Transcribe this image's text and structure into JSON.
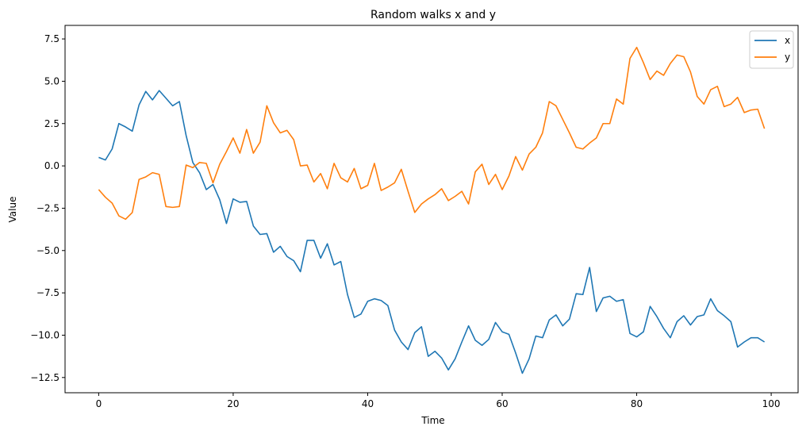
{
  "chart_data": {
    "type": "line",
    "title": "Random walks x and y",
    "xlabel": "Time",
    "ylabel": "Value",
    "xlim": [
      -5,
      104
    ],
    "ylim": [
      -13.4,
      8.3
    ],
    "xticks": [
      0,
      20,
      40,
      60,
      80,
      100
    ],
    "yticks": [
      -12.5,
      -10.0,
      -7.5,
      -5.0,
      -2.5,
      0.0,
      2.5,
      5.0,
      7.5
    ],
    "xtick_labels": [
      "0",
      "20",
      "40",
      "60",
      "80",
      "100"
    ],
    "ytick_labels": [
      "−12.5",
      "−10.0",
      "−7.5",
      "−5.0",
      "−2.5",
      "0.0",
      "2.5",
      "5.0",
      "7.5"
    ],
    "grid": false,
    "legend_position": "top-right",
    "series": [
      {
        "name": "x",
        "color": "#1f77b4",
        "values": [
          0.5,
          0.35,
          1.0,
          2.5,
          2.3,
          2.05,
          3.6,
          4.4,
          3.9,
          4.45,
          4.0,
          3.55,
          3.8,
          1.8,
          0.2,
          -0.4,
          -1.4,
          -1.1,
          -2.0,
          -3.4,
          -1.95,
          -2.15,
          -2.1,
          -3.55,
          -4.05,
          -4.0,
          -5.1,
          -4.75,
          -5.35,
          -5.6,
          -6.25,
          -4.4,
          -4.4,
          -5.45,
          -4.6,
          -5.85,
          -5.65,
          -7.6,
          -8.95,
          -8.75,
          -8.0,
          -7.85,
          -7.95,
          -8.25,
          -9.7,
          -10.4,
          -10.85,
          -9.85,
          -9.5,
          -11.25,
          -10.95,
          -11.35,
          -12.05,
          -11.4,
          -10.4,
          -9.45,
          -10.3,
          -10.6,
          -10.25,
          -9.25,
          -9.8,
          -9.95,
          -11.05,
          -12.25,
          -11.4,
          -10.05,
          -10.15,
          -9.1,
          -8.8,
          -9.45,
          -9.05,
          -7.55,
          -7.6,
          -6.0,
          -8.6,
          -7.8,
          -7.7,
          -8.0,
          -7.9,
          -9.9,
          -10.1,
          -9.8,
          -8.3,
          -8.9,
          -9.6,
          -10.15,
          -9.2,
          -8.85,
          -9.4,
          -8.9,
          -8.8,
          -7.85,
          -8.55,
          -8.85,
          -9.2,
          -10.7,
          -10.4,
          -10.15,
          -10.15,
          -10.4
        ]
      },
      {
        "name": "y",
        "color": "#ff7f0e",
        "values": [
          -1.4,
          -1.85,
          -2.2,
          -2.95,
          -3.15,
          -2.75,
          -0.8,
          -0.65,
          -0.4,
          -0.5,
          -2.4,
          -2.45,
          -2.4,
          0.05,
          -0.1,
          0.2,
          0.15,
          -1.0,
          0.1,
          0.85,
          1.65,
          0.75,
          2.15,
          0.75,
          1.4,
          3.55,
          2.55,
          1.95,
          2.1,
          1.55,
          0.0,
          0.05,
          -0.95,
          -0.45,
          -1.35,
          0.15,
          -0.7,
          -0.95,
          -0.15,
          -1.35,
          -1.15,
          0.15,
          -1.45,
          -1.25,
          -1.0,
          -0.2,
          -1.5,
          -2.75,
          -2.25,
          -1.95,
          -1.7,
          -1.35,
          -2.05,
          -1.8,
          -1.5,
          -2.25,
          -0.35,
          0.1,
          -1.1,
          -0.5,
          -1.4,
          -0.6,
          0.55,
          -0.25,
          0.7,
          1.1,
          1.95,
          3.8,
          3.55,
          2.75,
          1.95,
          1.1,
          1.0,
          1.35,
          1.65,
          2.5,
          2.5,
          3.95,
          3.65,
          6.35,
          7.0,
          6.1,
          5.1,
          5.6,
          5.35,
          6.05,
          6.55,
          6.45,
          5.55,
          4.1,
          3.65,
          4.5,
          4.7,
          3.5,
          3.65,
          4.05,
          3.15,
          3.3,
          3.35,
          2.2
        ]
      }
    ]
  }
}
